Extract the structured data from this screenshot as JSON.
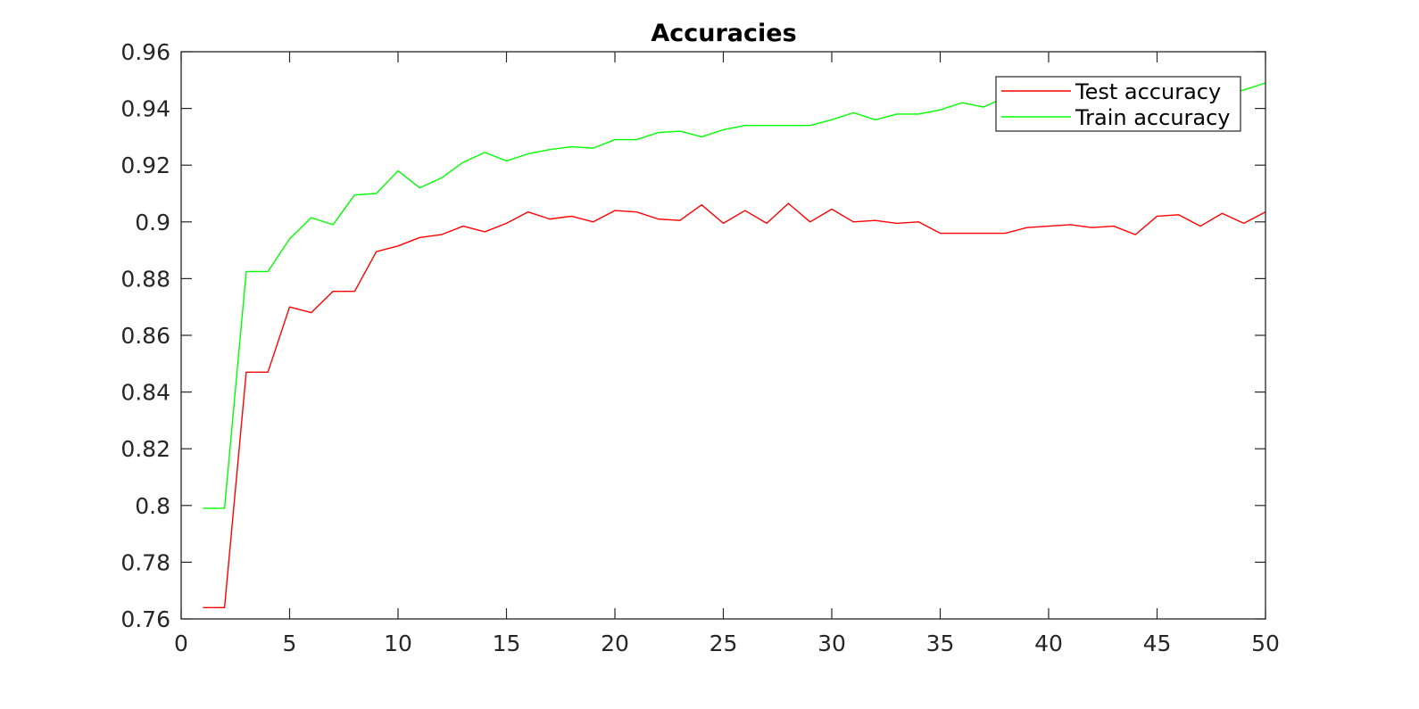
{
  "chart_data": {
    "type": "line",
    "title": "Accuracies",
    "xlabel": "",
    "ylabel": "",
    "xlim": [
      0,
      50
    ],
    "ylim": [
      0.76,
      0.96
    ],
    "grid": false,
    "legend_position": "top-right",
    "x_ticks": [
      "0",
      "5",
      "10",
      "15",
      "20",
      "25",
      "30",
      "35",
      "40",
      "45",
      "50"
    ],
    "y_ticks": [
      "0.76",
      "0.78",
      "0.8",
      "0.82",
      "0.84",
      "0.86",
      "0.88",
      "0.9",
      "0.92",
      "0.94",
      "0.96"
    ],
    "x": [
      1,
      2,
      3,
      4,
      5,
      6,
      7,
      8,
      9,
      10,
      11,
      12,
      13,
      14,
      15,
      16,
      17,
      18,
      19,
      20,
      21,
      22,
      23,
      24,
      25,
      26,
      27,
      28,
      29,
      30,
      31,
      32,
      33,
      34,
      35,
      36,
      37,
      38,
      39,
      40,
      41,
      42,
      43,
      44,
      45,
      46,
      47,
      48,
      49,
      50
    ],
    "series": [
      {
        "name": "Test accuracy",
        "color": "#ff0000",
        "values": [
          0.764,
          0.764,
          0.847,
          0.847,
          0.87,
          0.868,
          0.8755,
          0.8755,
          0.8895,
          0.8915,
          0.8945,
          0.8955,
          0.8985,
          0.8965,
          0.8995,
          0.9035,
          0.901,
          0.902,
          0.9,
          0.904,
          0.9035,
          0.901,
          0.9005,
          0.906,
          0.8995,
          0.904,
          0.8995,
          0.9065,
          0.9,
          0.9045,
          0.9,
          0.9005,
          0.8995,
          0.9,
          0.896,
          0.896,
          0.896,
          0.896,
          0.898,
          0.8985,
          0.899,
          0.898,
          0.8985,
          0.8955,
          0.902,
          0.9025,
          0.8985,
          0.903,
          0.8995,
          0.9035
        ]
      },
      {
        "name": "Train accuracy",
        "color": "#00ff00",
        "values": [
          0.799,
          0.799,
          0.8825,
          0.8825,
          0.894,
          0.9015,
          0.899,
          0.9095,
          0.91,
          0.918,
          0.912,
          0.9155,
          0.921,
          0.9245,
          0.9215,
          0.924,
          0.9255,
          0.9265,
          0.926,
          0.929,
          0.929,
          0.9315,
          0.932,
          0.93,
          0.9325,
          0.934,
          0.934,
          0.934,
          0.934,
          0.936,
          0.9385,
          0.936,
          0.938,
          0.938,
          0.9395,
          0.942,
          0.9405,
          0.944,
          0.9445,
          0.9455,
          0.945,
          0.945,
          0.9455,
          0.9455,
          0.9455,
          0.946,
          0.9455,
          0.945,
          0.9465,
          0.949
        ]
      }
    ]
  }
}
